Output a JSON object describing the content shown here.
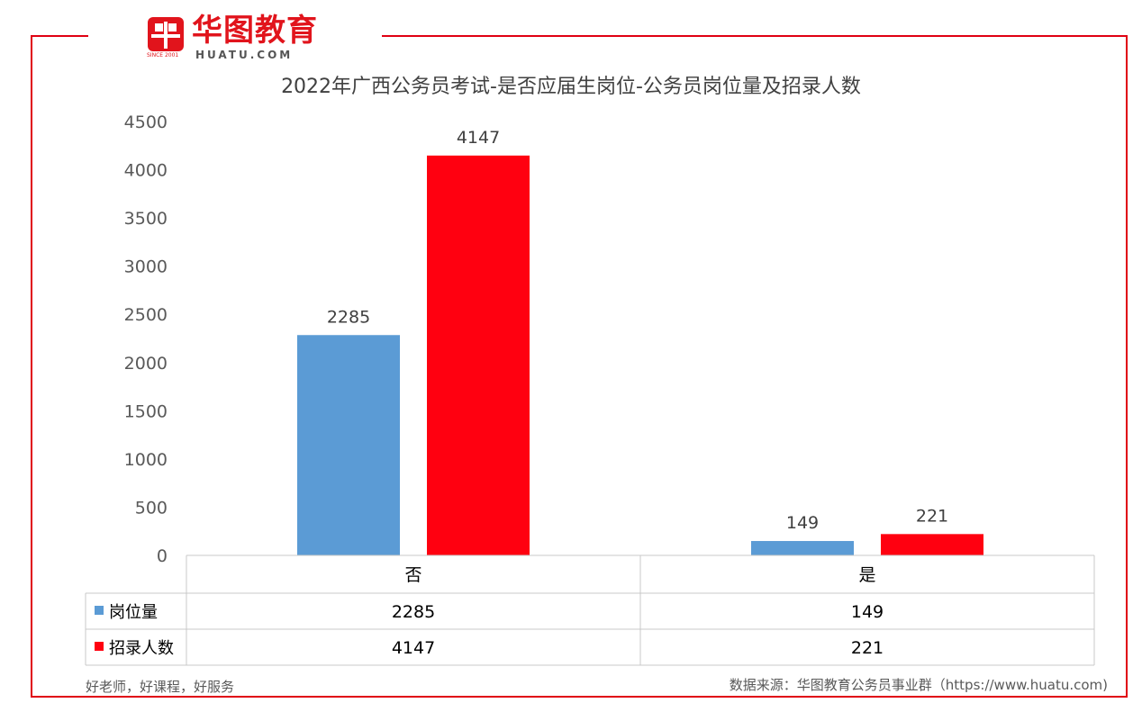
{
  "brand": {
    "name": "华图教育",
    "domain": "HUATU.COM",
    "since": "SINCE 2001",
    "color": "#e1141c"
  },
  "footer": {
    "slogan": "好老师，好课程，好服务",
    "source": "数据来源：华图教育公务员事业群（https://www.huatu.com)"
  },
  "chart_data": {
    "type": "bar",
    "title": "2022年广西公务员考试-是否应届生岗位-公务员岗位量及招录人数",
    "categories": [
      "否",
      "是"
    ],
    "series": [
      {
        "name": "岗位量",
        "values": [
          2285,
          149
        ],
        "color": "#5b9bd5"
      },
      {
        "name": "招录人数",
        "values": [
          4147,
          221
        ],
        "color": "#ff0010"
      }
    ],
    "ylim": [
      0,
      4500
    ],
    "yticks": [
      "0",
      "500",
      "1000",
      "1500",
      "2000",
      "2500",
      "3000",
      "3500",
      "4000",
      "4500"
    ],
    "grid": false,
    "legend": "data-table",
    "data_table": true
  }
}
